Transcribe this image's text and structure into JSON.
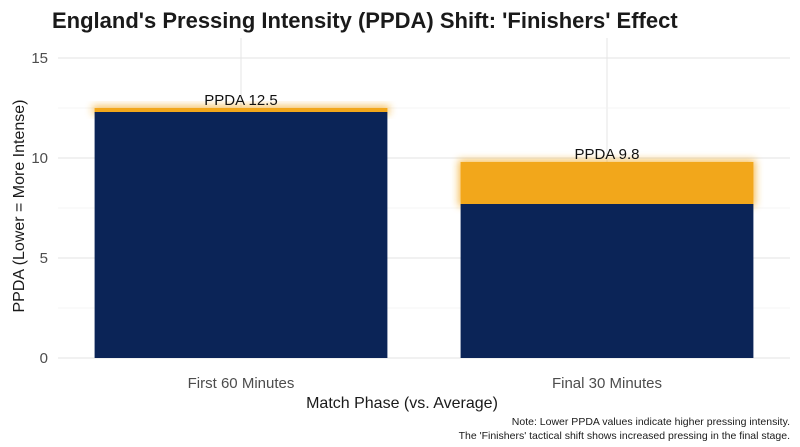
{
  "chart_data": {
    "type": "bar",
    "title": "England's Pressing Intensity (PPDA) Shift: 'Finishers' Effect",
    "xlabel": "Match Phase (vs. Average)",
    "ylabel": "PPDA (Lower = More Intense)",
    "categories": [
      "First 60 Minutes",
      "Final 30 Minutes"
    ],
    "values": [
      12.5,
      9.8
    ],
    "base_values": [
      12.3,
      7.7
    ],
    "data_labels": [
      "PPDA 12.5",
      "PPDA 9.8"
    ],
    "ylim": [
      0,
      16
    ],
    "yticks": [
      0,
      5,
      10,
      15
    ],
    "grid": true,
    "colors": {
      "base": "#0b2457",
      "highlight": "#f2a71b"
    },
    "notes": [
      "Note: Lower PPDA values indicate higher pressing intensity.",
      "The 'Finishers' tactical shift shows increased pressing in the final stage."
    ]
  }
}
